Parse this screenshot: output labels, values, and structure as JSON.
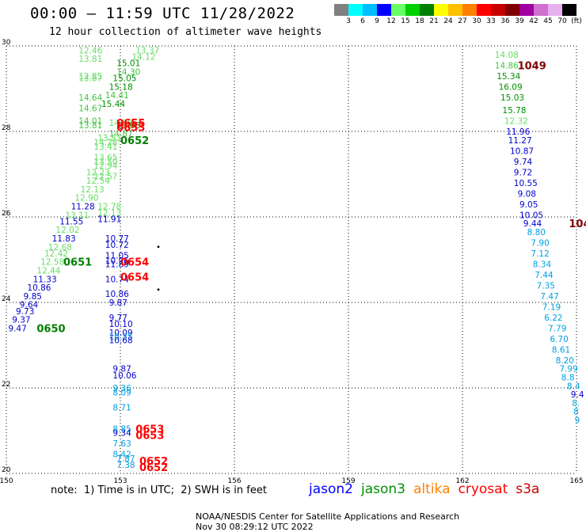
{
  "header": {
    "title": "00:00 — 11:59 UTC 11/28/2022",
    "subtitle": "12 hour collection of altimeter wave heights"
  },
  "legend_scale": {
    "labels": [
      "3",
      "6",
      "9",
      "12",
      "15",
      "18",
      "21",
      "24",
      "27",
      "30",
      "33",
      "36",
      "39",
      "42",
      "45",
      "70",
      "(ft)"
    ],
    "colors": [
      "#808080",
      "#00ffff",
      "#00bfff",
      "#0000ff",
      "#66ff66",
      "#00d000",
      "#008000",
      "#ffff00",
      "#ffc000",
      "#ff8000",
      "#ff0000",
      "#c80000",
      "#800000",
      "#a000a0",
      "#d070d0",
      "#e8b0f0",
      "#000000"
    ]
  },
  "footer": {
    "note": "note:  1) Time is in UTC;  2) SWH is in feet",
    "satellites": [
      {
        "name": "jason2",
        "color": "#0000ff"
      },
      {
        "name": "jason3",
        "color": "#009000"
      },
      {
        "name": "altika",
        "color": "#ff8000"
      },
      {
        "name": "cryosat",
        "color": "#ff0000"
      },
      {
        "name": "s3a",
        "color": "#c80000"
      }
    ],
    "credit": "NOAA/NESDIS Center for Satellite Applications and Research",
    "timestamp": "Nov 30 08:29:12 UTC 2022"
  },
  "chart_data": {
    "type": "scatter",
    "xlim": [
      150,
      165
    ],
    "ylim": [
      20,
      30
    ],
    "x_ticks": [
      "150",
      "153",
      "156",
      "159",
      "162",
      "165"
    ],
    "y_ticks": [
      "20",
      "22",
      "24",
      "26",
      "28",
      "30"
    ],
    "grid": true,
    "points": [
      {
        "x": 151.9,
        "y": 29.9,
        "label": "12.46",
        "color": "#66dd66"
      },
      {
        "x": 151.9,
        "y": 29.7,
        "label": "13.81",
        "color": "#66dd66"
      },
      {
        "x": 151.9,
        "y": 29.3,
        "label": "12.85",
        "color": "#66dd66"
      },
      {
        "x": 151.9,
        "y": 29.25,
        "label": "13.87",
        "color": "#66dd66"
      },
      {
        "x": 151.9,
        "y": 28.8,
        "label": "14.64",
        "color": "#44c444"
      },
      {
        "x": 151.9,
        "y": 28.55,
        "label": "14.67",
        "color": "#44c444"
      },
      {
        "x": 151.9,
        "y": 28.25,
        "label": "14.01",
        "color": "#44c444"
      },
      {
        "x": 151.9,
        "y": 28.15,
        "label": "13.81",
        "color": "#44c444"
      },
      {
        "x": 152.7,
        "y": 28.2,
        "label": "14.58",
        "color": "#66dd66"
      },
      {
        "x": 152.9,
        "y": 28.15,
        "label": "15.08",
        "color": "#009000"
      },
      {
        "x": 152.7,
        "y": 27.95,
        "label": "14.87",
        "color": "#44c444"
      },
      {
        "x": 152.4,
        "y": 27.85,
        "label": "13.81",
        "color": "#66dd66"
      },
      {
        "x": 152.3,
        "y": 27.75,
        "label": "14.28",
        "color": "#66dd66"
      },
      {
        "x": 152.3,
        "y": 27.65,
        "label": "13.41",
        "color": "#66dd66"
      },
      {
        "x": 152.3,
        "y": 27.4,
        "label": "13.65",
        "color": "#66dd66"
      },
      {
        "x": 152.3,
        "y": 27.3,
        "label": "13.50",
        "color": "#66dd66"
      },
      {
        "x": 152.3,
        "y": 27.2,
        "label": "12.94",
        "color": "#66dd66"
      },
      {
        "x": 152.1,
        "y": 27.05,
        "label": "12.23",
        "color": "#66dd66"
      },
      {
        "x": 152.3,
        "y": 26.95,
        "label": "12.57",
        "color": "#66dd66"
      },
      {
        "x": 152.1,
        "y": 26.85,
        "label": "12.54",
        "color": "#66dd66"
      },
      {
        "x": 151.95,
        "y": 26.65,
        "label": "12.13",
        "color": "#66dd66"
      },
      {
        "x": 151.8,
        "y": 26.45,
        "label": "12.90",
        "color": "#66dd66"
      },
      {
        "x": 151.7,
        "y": 26.25,
        "label": "11.28",
        "color": "#0000cc"
      },
      {
        "x": 152.4,
        "y": 26.25,
        "label": "12.78",
        "color": "#66dd66"
      },
      {
        "x": 151.55,
        "y": 26.05,
        "label": "13.11",
        "color": "#66dd66"
      },
      {
        "x": 152.4,
        "y": 26.1,
        "label": "12.13",
        "color": "#66dd66"
      },
      {
        "x": 152.4,
        "y": 25.95,
        "label": "11.91",
        "color": "#0000cc"
      },
      {
        "x": 151.4,
        "y": 25.9,
        "label": "11.55",
        "color": "#0000cc"
      },
      {
        "x": 151.3,
        "y": 25.7,
        "label": "12.02",
        "color": "#66dd66"
      },
      {
        "x": 151.2,
        "y": 25.5,
        "label": "11.83",
        "color": "#0000cc"
      },
      {
        "x": 151.1,
        "y": 25.3,
        "label": "12.68",
        "color": "#66dd66"
      },
      {
        "x": 151.0,
        "y": 25.15,
        "label": "12.42",
        "color": "#66dd66"
      },
      {
        "x": 150.9,
        "y": 24.95,
        "label": "12.58",
        "color": "#66dd66"
      },
      {
        "x": 150.8,
        "y": 24.75,
        "label": "12.44",
        "color": "#66dd66"
      },
      {
        "x": 150.7,
        "y": 24.55,
        "label": "11.33",
        "color": "#0000cc"
      },
      {
        "x": 150.55,
        "y": 24.35,
        "label": "10.86",
        "color": "#0000cc"
      },
      {
        "x": 150.45,
        "y": 24.15,
        "label": "9.85",
        "color": "#0000cc"
      },
      {
        "x": 150.35,
        "y": 23.95,
        "label": "9.64",
        "color": "#0000cc"
      },
      {
        "x": 150.25,
        "y": 23.8,
        "label": "9.73",
        "color": "#0000cc"
      },
      {
        "x": 150.15,
        "y": 23.6,
        "label": "9.37",
        "color": "#0000cc"
      },
      {
        "x": 150.05,
        "y": 23.4,
        "label": "9.47",
        "color": "#0000cc"
      },
      {
        "x": 152.6,
        "y": 25.5,
        "label": "10.77",
        "color": "#0000cc"
      },
      {
        "x": 152.6,
        "y": 25.35,
        "label": "10.72",
        "color": "#0000cc"
      },
      {
        "x": 152.6,
        "y": 25.1,
        "label": "11.05",
        "color": "#0000cc"
      },
      {
        "x": 152.6,
        "y": 24.98,
        "label": "10.96",
        "color": "#0000cc"
      },
      {
        "x": 152.6,
        "y": 24.9,
        "label": "11.89",
        "color": "#0000cc"
      },
      {
        "x": 152.6,
        "y": 24.55,
        "label": "10.74",
        "color": "#0000cc"
      },
      {
        "x": 152.6,
        "y": 24.2,
        "label": "10.86",
        "color": "#0000cc"
      },
      {
        "x": 152.7,
        "y": 24.0,
        "label": "9.87",
        "color": "#0000cc"
      },
      {
        "x": 152.7,
        "y": 23.65,
        "label": "9.77",
        "color": "#0000cc"
      },
      {
        "x": 152.7,
        "y": 23.5,
        "label": "10.10",
        "color": "#0000cc"
      },
      {
        "x": 152.7,
        "y": 23.3,
        "label": "10.09",
        "color": "#0000cc"
      },
      {
        "x": 152.7,
        "y": 23.2,
        "label": "10.35",
        "color": "#00a0e0"
      },
      {
        "x": 152.7,
        "y": 23.12,
        "label": "10.68",
        "color": "#0000cc"
      },
      {
        "x": 152.8,
        "y": 22.45,
        "label": "9.87",
        "color": "#0000cc"
      },
      {
        "x": 152.8,
        "y": 22.3,
        "label": "10.06",
        "color": "#0000cc"
      },
      {
        "x": 152.8,
        "y": 22.0,
        "label": "9.36",
        "color": "#00a0e0"
      },
      {
        "x": 152.8,
        "y": 21.9,
        "label": "8.09",
        "color": "#00a0e0"
      },
      {
        "x": 152.8,
        "y": 21.55,
        "label": "8.71",
        "color": "#00a0e0"
      },
      {
        "x": 152.8,
        "y": 21.05,
        "label": "8.85",
        "color": "#00a0e0"
      },
      {
        "x": 152.8,
        "y": 20.95,
        "label": "9.34",
        "color": "#0000cc"
      },
      {
        "x": 152.8,
        "y": 20.7,
        "label": "7.63",
        "color": "#00a0e0"
      },
      {
        "x": 152.8,
        "y": 20.45,
        "label": "8.42",
        "color": "#00a0e0"
      },
      {
        "x": 152.9,
        "y": 20.35,
        "label": "7.87",
        "color": "#00a0e0"
      },
      {
        "x": 152.9,
        "y": 20.2,
        "label": "7.38",
        "color": "#00a0e0"
      },
      {
        "x": 153.4,
        "y": 29.9,
        "label": "13.37",
        "color": "#66dd66"
      },
      {
        "x": 153.3,
        "y": 29.75,
        "label": "14.12",
        "color": "#66dd66"
      },
      {
        "x": 152.9,
        "y": 29.6,
        "label": "15.01",
        "color": "#009000"
      },
      {
        "x": 152.9,
        "y": 29.4,
        "label": "14.30",
        "color": "#44c444"
      },
      {
        "x": 152.8,
        "y": 29.25,
        "label": "15.05",
        "color": "#009000"
      },
      {
        "x": 152.7,
        "y": 29.05,
        "label": "15.18",
        "color": "#009000"
      },
      {
        "x": 152.6,
        "y": 28.85,
        "label": "14.41",
        "color": "#44c444"
      },
      {
        "x": 152.5,
        "y": 28.65,
        "label": "15.44",
        "color": "#009000"
      },
      {
        "x": 162.85,
        "y": 29.8,
        "label": "14.08",
        "color": "#66dd66"
      },
      {
        "x": 162.85,
        "y": 29.55,
        "label": "14.86",
        "color": "#44c444"
      },
      {
        "x": 162.9,
        "y": 29.3,
        "label": "15.34",
        "color": "#009000"
      },
      {
        "x": 162.95,
        "y": 29.05,
        "label": "16.09",
        "color": "#009000"
      },
      {
        "x": 163.0,
        "y": 28.8,
        "label": "15.03",
        "color": "#009000"
      },
      {
        "x": 163.05,
        "y": 28.5,
        "label": "15.78",
        "color": "#009000"
      },
      {
        "x": 163.1,
        "y": 28.25,
        "label": "12.32",
        "color": "#66dd66"
      },
      {
        "x": 163.15,
        "y": 28.0,
        "label": "11.96",
        "color": "#0000cc"
      },
      {
        "x": 163.2,
        "y": 27.8,
        "label": "11.27",
        "color": "#0000cc"
      },
      {
        "x": 163.25,
        "y": 27.55,
        "label": "10.87",
        "color": "#0000cc"
      },
      {
        "x": 163.35,
        "y": 27.3,
        "label": "9.74",
        "color": "#0000cc"
      },
      {
        "x": 163.35,
        "y": 27.05,
        "label": "9.72",
        "color": "#0000cc"
      },
      {
        "x": 163.35,
        "y": 26.8,
        "label": "10.55",
        "color": "#0000cc"
      },
      {
        "x": 163.45,
        "y": 26.55,
        "label": "9.08",
        "color": "#0000cc"
      },
      {
        "x": 163.5,
        "y": 26.3,
        "label": "9.05",
        "color": "#0000cc"
      },
      {
        "x": 163.5,
        "y": 26.05,
        "label": "10.05",
        "color": "#0000cc"
      },
      {
        "x": 163.6,
        "y": 25.85,
        "label": "9.44",
        "color": "#0000cc"
      },
      {
        "x": 163.7,
        "y": 25.65,
        "label": "8.80",
        "color": "#00a0e0"
      },
      {
        "x": 163.8,
        "y": 25.4,
        "label": "7.90",
        "color": "#00a0e0"
      },
      {
        "x": 163.8,
        "y": 25.15,
        "label": "7.12",
        "color": "#00a0e0"
      },
      {
        "x": 163.85,
        "y": 24.9,
        "label": "8.34",
        "color": "#00a0e0"
      },
      {
        "x": 163.9,
        "y": 24.65,
        "label": "7.44",
        "color": "#00a0e0"
      },
      {
        "x": 163.95,
        "y": 24.4,
        "label": "7.35",
        "color": "#00a0e0"
      },
      {
        "x": 164.05,
        "y": 24.15,
        "label": "7.47",
        "color": "#00a0e0"
      },
      {
        "x": 164.1,
        "y": 23.9,
        "label": "7.19",
        "color": "#00a0e0"
      },
      {
        "x": 164.15,
        "y": 23.65,
        "label": "6.22",
        "color": "#00a0e0"
      },
      {
        "x": 164.25,
        "y": 23.4,
        "label": "7.79",
        "color": "#00a0e0"
      },
      {
        "x": 164.3,
        "y": 23.15,
        "label": "6.70",
        "color": "#00a0e0"
      },
      {
        "x": 164.35,
        "y": 22.9,
        "label": "8.61",
        "color": "#00a0e0"
      },
      {
        "x": 164.45,
        "y": 22.65,
        "label": "8.20",
        "color": "#00a0e0"
      },
      {
        "x": 164.55,
        "y": 22.45,
        "label": "7.99",
        "color": "#00a0e0"
      },
      {
        "x": 164.6,
        "y": 22.25,
        "label": "8.8",
        "color": "#00a0e0"
      },
      {
        "x": 164.75,
        "y": 22.05,
        "label": "8.4",
        "color": "#00a0e0"
      },
      {
        "x": 164.85,
        "y": 21.85,
        "label": "9.4",
        "color": "#0000cc"
      },
      {
        "x": 164.88,
        "y": 21.65,
        "label": "8.",
        "color": "#00a0e0"
      },
      {
        "x": 164.92,
        "y": 21.45,
        "label": "8",
        "color": "#00a0e0"
      },
      {
        "x": 164.95,
        "y": 21.25,
        "label": "9",
        "color": "#00a0e0"
      }
    ],
    "pass_labels": [
      {
        "x": 152.9,
        "y": 28.2,
        "label": "0655",
        "color": "#ff0000"
      },
      {
        "x": 152.9,
        "y": 28.1,
        "label": "0653",
        "color": "#ff0000"
      },
      {
        "x": 153.0,
        "y": 27.8,
        "label": "0652",
        "color": "#008000"
      },
      {
        "x": 151.5,
        "y": 24.95,
        "label": "0651",
        "color": "#008000"
      },
      {
        "x": 150.8,
        "y": 23.4,
        "label": "0650",
        "color": "#008000"
      },
      {
        "x": 153.0,
        "y": 24.95,
        "label": "0654",
        "color": "#ff0000"
      },
      {
        "x": 153.0,
        "y": 24.6,
        "label": "0654",
        "color": "#ff0000"
      },
      {
        "x": 153.4,
        "y": 21.05,
        "label": "0653",
        "color": "#ff0000"
      },
      {
        "x": 153.4,
        "y": 20.9,
        "label": "0653",
        "color": "#ff0000"
      },
      {
        "x": 153.5,
        "y": 20.3,
        "label": "0652",
        "color": "#ff0000"
      },
      {
        "x": 153.5,
        "y": 20.15,
        "label": "0652",
        "color": "#ff0000"
      },
      {
        "x": 163.45,
        "y": 29.55,
        "label": "1049",
        "color": "#800000"
      },
      {
        "x": 164.8,
        "y": 25.85,
        "label": "104",
        "color": "#800000"
      }
    ],
    "dots": [
      {
        "x": 154.0,
        "y": 25.3
      },
      {
        "x": 154.0,
        "y": 24.3
      }
    ]
  }
}
